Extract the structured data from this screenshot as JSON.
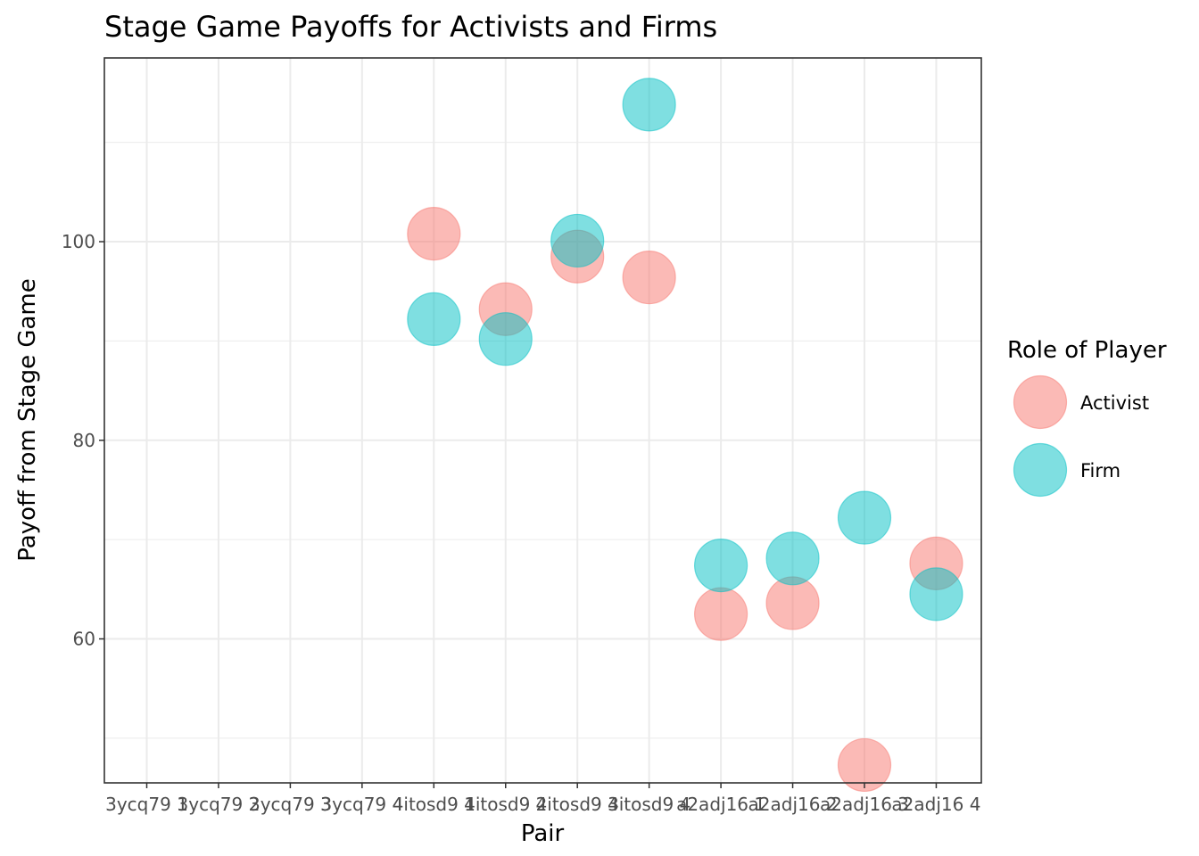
{
  "chart_data": {
    "type": "scatter",
    "title": "Stage Game Payoffs for Activists and Firms",
    "xlabel": "Pair",
    "ylabel": "Payoff from Stage Game",
    "categories": [
      "3ycq79 1",
      "3ycq79 2",
      "3ycq79 3",
      "3ycq79 4",
      "4itosd9 1",
      "4itosd9 2",
      "4itosd9 3",
      "4itosd9 4",
      "a2adj16 1",
      "a2adj16 2",
      "a2adj16 3",
      "a2adj16 4"
    ],
    "ylim": [
      45.5,
      118.5
    ],
    "yticks": [
      60,
      80,
      100
    ],
    "grid": true,
    "legend": {
      "title": "Role of Player",
      "position": "right"
    },
    "series": [
      {
        "name": "Activist",
        "color": "#F8766D",
        "points": [
          {
            "x": "4itosd9 1",
            "y": 100.8
          },
          {
            "x": "4itosd9 2",
            "y": 93.2
          },
          {
            "x": "4itosd9 3",
            "y": 98.5
          },
          {
            "x": "4itosd9 4",
            "y": 96.4
          },
          {
            "x": "a2adj16 1",
            "y": 62.5
          },
          {
            "x": "a2adj16 2",
            "y": 63.6
          },
          {
            "x": "a2adj16 3",
            "y": 47.3
          },
          {
            "x": "a2adj16 4",
            "y": 67.6
          }
        ]
      },
      {
        "name": "Firm",
        "color": "#00BFC4",
        "points": [
          {
            "x": "4itosd9 1",
            "y": 92.2
          },
          {
            "x": "4itosd9 2",
            "y": 90.2
          },
          {
            "x": "4itosd9 3",
            "y": 100.1
          },
          {
            "x": "4itosd9 4",
            "y": 113.8
          },
          {
            "x": "a2adj16 1",
            "y": 67.4
          },
          {
            "x": "a2adj16 2",
            "y": 68.1
          },
          {
            "x": "a2adj16 3",
            "y": 72.2
          },
          {
            "x": "a2adj16 4",
            "y": 64.5
          }
        ]
      }
    ]
  }
}
